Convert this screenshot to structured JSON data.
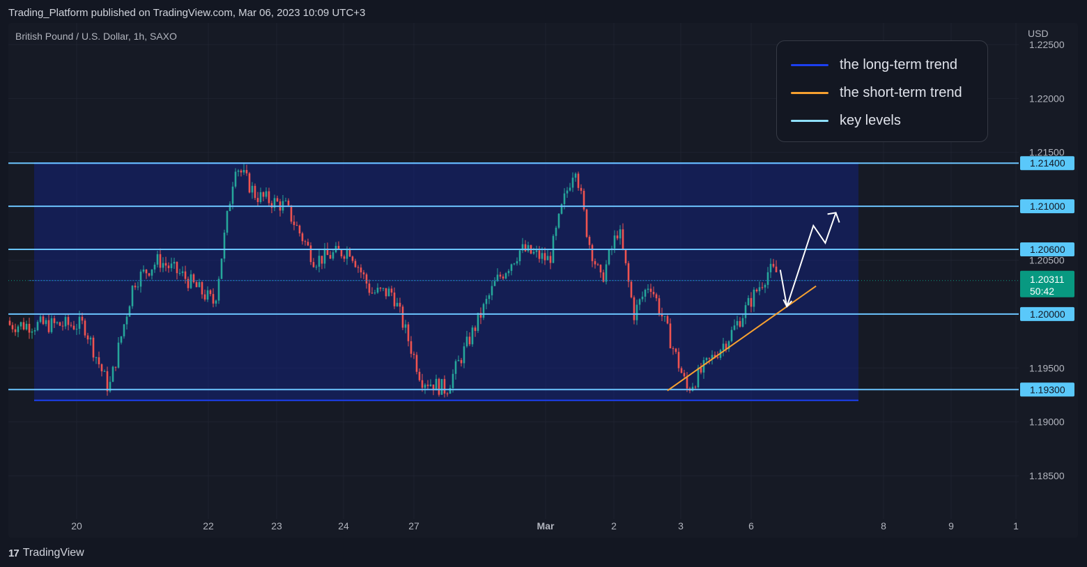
{
  "header": {
    "publish_line": "Trading_Platform published on TradingView.com, Mar 06, 2023 10:09 UTC+3",
    "symbol_line": "British Pound / U.S. Dollar, 1h, SAXO"
  },
  "footer": {
    "logo_text": "TradingView",
    "logo_mark": "17"
  },
  "legend": {
    "items": [
      {
        "label": "the long-term trend",
        "color": "#1c3ff0"
      },
      {
        "label": "the short-term trend",
        "color": "#f7a130"
      },
      {
        "label": "key levels",
        "color": "#8fe0ff"
      }
    ]
  },
  "colors": {
    "background": "#131722",
    "chart_area": "#161a25",
    "grid": "#1f2330",
    "candle_up": "#26a69a",
    "candle_down": "#ef5350",
    "range_box": "#14227a",
    "key_level": "#6cc5ff",
    "price_badge": "#089981"
  },
  "chart_data": {
    "type": "candlestick",
    "title": "British Pound / U.S. Dollar, 1h, SAXO",
    "currency_label": "USD",
    "y_ticks": [
      "1.22500",
      "1.22000",
      "1.21500",
      "1.20500",
      "1.19500",
      "1.19000",
      "1.18500"
    ],
    "x_ticks": [
      "20",
      "22",
      "23",
      "24",
      "27",
      "Mar",
      "2",
      "3",
      "6",
      "8",
      "9",
      "1"
    ],
    "ylim": [
      1.181,
      1.227
    ],
    "grid": true,
    "key_levels": [
      1.214,
      1.21,
      1.206,
      1.2,
      1.193
    ],
    "key_level_labels": [
      "1.21400",
      "1.21000",
      "1.20600",
      "1.20000",
      "1.19300"
    ],
    "current_price": {
      "value": 1.20311,
      "label": "1.20311",
      "countdown": "50:42"
    },
    "range_box": {
      "top": 1.214,
      "bottom": 1.192
    },
    "short_term_trend": {
      "start": {
        "x": "3",
        "y": 1.1929
      },
      "end": {
        "x": "6",
        "y": 1.2023
      }
    },
    "projection_path": [
      {
        "x": "6",
        "y": 1.2041
      },
      {
        "x": "6",
        "y": 1.2007
      },
      {
        "x": "6",
        "y": 1.2082
      },
      {
        "x": "8",
        "y": 1.2066
      },
      {
        "x": "8",
        "y": 1.2094
      }
    ],
    "price_path": [
      {
        "x": "20",
        "y": 1.199
      },
      {
        "x": "20",
        "y": 1.193
      },
      {
        "x": "20",
        "y": 1.203
      },
      {
        "x": "20",
        "y": 1.205
      },
      {
        "x": "20",
        "y": 1.2035
      },
      {
        "x": "22",
        "y": 1.201
      },
      {
        "x": "22",
        "y": 1.214
      },
      {
        "x": "22",
        "y": 1.211
      },
      {
        "x": "23",
        "y": 1.21
      },
      {
        "x": "23",
        "y": 1.205
      },
      {
        "x": "24",
        "y": 1.206
      },
      {
        "x": "24",
        "y": 1.202
      },
      {
        "x": "24",
        "y": 1.202
      },
      {
        "x": "27",
        "y": 1.194
      },
      {
        "x": "27",
        "y": 1.193
      },
      {
        "x": "27",
        "y": 1.198
      },
      {
        "x": "27",
        "y": 1.203
      },
      {
        "x": "27",
        "y": 1.206
      },
      {
        "x": "Mar",
        "y": 1.205
      },
      {
        "x": "Mar",
        "y": 1.21
      },
      {
        "x": "Mar",
        "y": 1.214
      },
      {
        "x": "Mar",
        "y": 1.207
      },
      {
        "x": "Mar",
        "y": 1.203
      },
      {
        "x": "2",
        "y": 1.208
      },
      {
        "x": "2",
        "y": 1.2
      },
      {
        "x": "2",
        "y": 1.203
      },
      {
        "x": "2",
        "y": 1.199
      },
      {
        "x": "3",
        "y": 1.193
      },
      {
        "x": "3",
        "y": 1.1955
      },
      {
        "x": "3",
        "y": 1.198
      },
      {
        "x": "6",
        "y": 1.204
      },
      {
        "x": "6",
        "y": 1.203
      }
    ]
  }
}
